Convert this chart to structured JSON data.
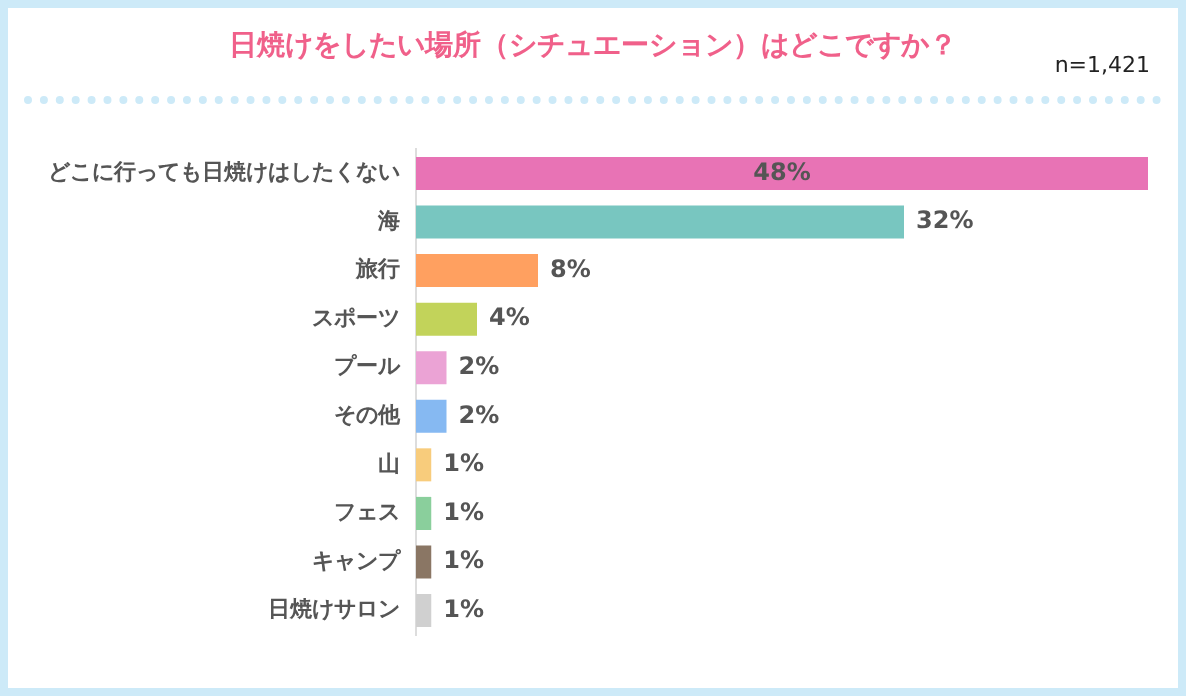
{
  "chart_data": {
    "type": "bar",
    "orientation": "horizontal",
    "title": "日焼けをしたい場所（シチュエーション）はどこですか？",
    "annotations": [
      "n=1,421"
    ],
    "categories": [
      "どこに行っても日焼けはしたくない",
      "海",
      "旅行",
      "スポーツ",
      "プール",
      "その他",
      "山",
      "フェス",
      "キャンプ",
      "日焼けサロン"
    ],
    "values": [
      48,
      32,
      8,
      4,
      2,
      2,
      1,
      1,
      1,
      1
    ],
    "value_labels": [
      "48%",
      "32%",
      "8%",
      "4%",
      "2%",
      "2%",
      "1%",
      "1%",
      "1%",
      "1%"
    ],
    "colors": [
      "#e873b5",
      "#78c6c0",
      "#ffa060",
      "#c2d35a",
      "#eba3d5",
      "#86b9f2",
      "#f8cc7c",
      "#8acf9c",
      "#8a7664",
      "#d0d0d0"
    ],
    "grid": false,
    "legend": false
  }
}
